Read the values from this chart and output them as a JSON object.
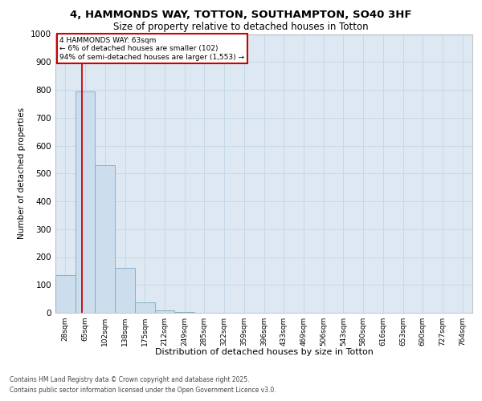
{
  "title_line1": "4, HAMMONDS WAY, TOTTON, SOUTHAMPTON, SO40 3HF",
  "title_line2": "Size of property relative to detached houses in Totton",
  "xlabel": "Distribution of detached houses by size in Totton",
  "ylabel": "Number of detached properties",
  "categories": [
    "28sqm",
    "65sqm",
    "102sqm",
    "138sqm",
    "175sqm",
    "212sqm",
    "249sqm",
    "285sqm",
    "322sqm",
    "359sqm",
    "396sqm",
    "433sqm",
    "469sqm",
    "506sqm",
    "543sqm",
    "580sqm",
    "616sqm",
    "653sqm",
    "690sqm",
    "727sqm",
    "764sqm"
  ],
  "values": [
    135,
    795,
    530,
    162,
    38,
    8,
    2,
    0,
    0,
    0,
    0,
    0,
    0,
    0,
    0,
    0,
    0,
    0,
    0,
    0,
    0
  ],
  "bar_color": "#ccdded",
  "bar_edge_color": "#7aaabf",
  "ylim": [
    0,
    1000
  ],
  "yticks": [
    0,
    100,
    200,
    300,
    400,
    500,
    600,
    700,
    800,
    900,
    1000
  ],
  "annotation_title": "4 HAMMONDS WAY: 63sqm",
  "annotation_line2": "← 6% of detached houses are smaller (102)",
  "annotation_line3": "94% of semi-detached houses are larger (1,553) →",
  "annotation_box_color": "#cc0000",
  "grid_color": "#c5d8e8",
  "background_color": "#dde8f3",
  "footer_line1": "Contains HM Land Registry data © Crown copyright and database right 2025.",
  "footer_line2": "Contains public sector information licensed under the Open Government Licence v3.0."
}
